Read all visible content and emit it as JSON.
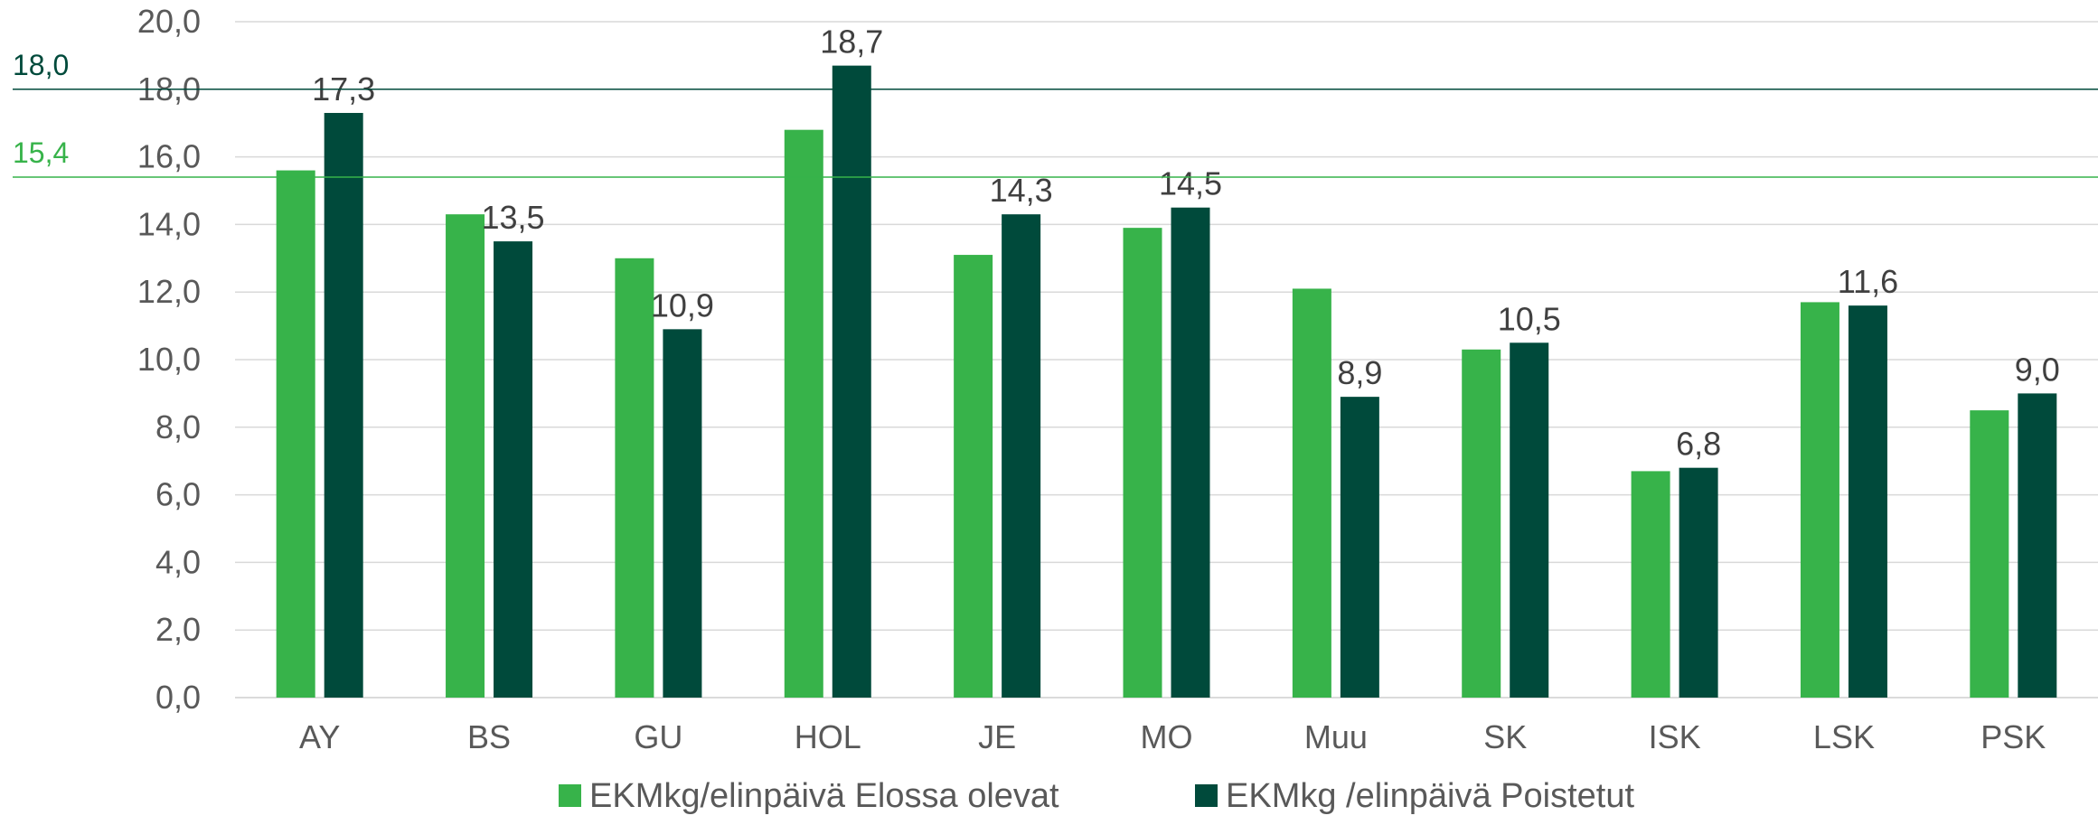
{
  "chart_data": {
    "type": "bar",
    "categories": [
      "AY",
      "BS",
      "GU",
      "HOL",
      "JE",
      "MO",
      "Muu",
      "SK",
      "ISK",
      "LSK",
      "PSK"
    ],
    "series": [
      {
        "name": "EKMkg/elinpäivä Elossa olevat",
        "color": "#37b34a",
        "values": [
          15.6,
          14.3,
          13.0,
          16.8,
          13.1,
          13.9,
          12.1,
          10.3,
          6.7,
          11.7,
          8.5
        ],
        "data_labels": null
      },
      {
        "name": "EKMkg /elinpäivä Poistetut",
        "color": "#004a3b",
        "values": [
          17.3,
          13.5,
          10.9,
          18.7,
          14.3,
          14.5,
          8.9,
          10.5,
          6.8,
          11.6,
          9.0
        ],
        "data_labels": [
          "17,3",
          "13,5",
          "10,9",
          "18,7",
          "14,3",
          "14,5",
          "8,9",
          "10,5",
          "6,8",
          "11,6",
          "9,0"
        ]
      }
    ],
    "reference_lines": [
      {
        "value": 18.0,
        "label": "18,0",
        "color": "#004a3b"
      },
      {
        "value": 15.4,
        "label": "15,4",
        "color": "#37b34a"
      }
    ],
    "ylim": [
      0,
      20
    ],
    "yticks": [
      "0,0",
      "2,0",
      "4,0",
      "6,0",
      "8,0",
      "10,0",
      "12,0",
      "14,0",
      "16,0",
      "18,0",
      "20,0"
    ],
    "grid": true,
    "legend_position": "bottom",
    "title": "",
    "xlabel": "",
    "ylabel": ""
  }
}
